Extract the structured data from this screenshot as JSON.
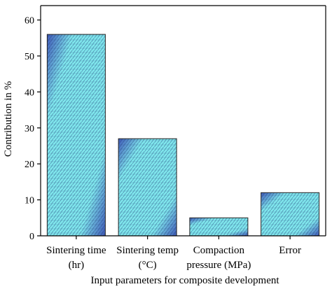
{
  "chart_data": {
    "type": "bar",
    "categories": [
      [
        "Sintering time",
        "(hr)"
      ],
      [
        "Sintering temp",
        "(°C)"
      ],
      [
        "Compaction",
        "pressure (MPa)"
      ],
      [
        "Error"
      ]
    ],
    "values": [
      56,
      27,
      5,
      12
    ],
    "xlabel": "Input parameters for composite development",
    "ylabel": "Contribution in %",
    "ylim": [
      0,
      64
    ],
    "yticks": [
      "0",
      "10",
      "20",
      "30",
      "40",
      "50",
      "60"
    ],
    "grid": false,
    "colors": {
      "bar_light": "#7fe6ec",
      "bar_dark": "#3f58b8",
      "pattern_line": "#1f3b78",
      "bar_border": "#222222"
    }
  }
}
